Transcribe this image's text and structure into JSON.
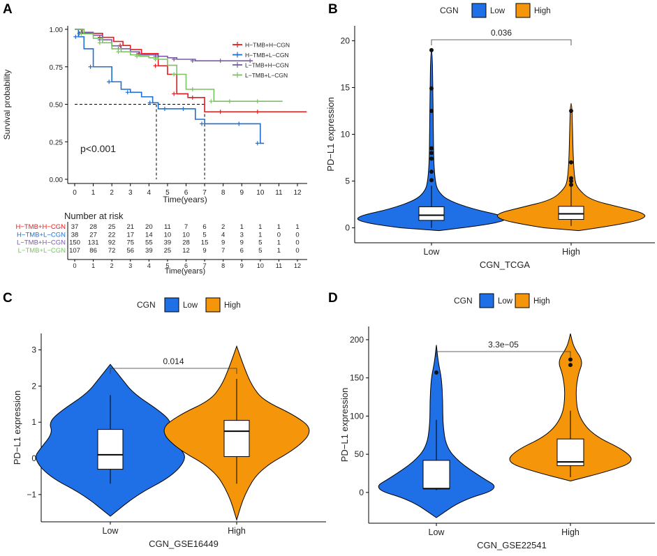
{
  "panels": {
    "A": {
      "label": "A",
      "chart_data": {
        "type": "line",
        "subtype": "kaplan-meier",
        "xlabel": "Time(years)",
        "ylabel": "Survival probability",
        "xlim": [
          0,
          12
        ],
        "ylim": [
          0,
          1
        ],
        "xticks": [
          "0",
          "1",
          "2",
          "3",
          "4",
          "5",
          "6",
          "7",
          "8",
          "9",
          "10",
          "11",
          "12"
        ],
        "yticks": [
          "0.00",
          "0.25",
          "0.50",
          "0.75",
          "1.00"
        ],
        "pvalue_text": "p<0.001",
        "median_lines": [
          4.4,
          7.0
        ],
        "series": [
          {
            "name": "H−TMB+H−CGN",
            "color": "#e41a1c",
            "x": [
              0,
              0.4,
              0.8,
              1.5,
              2.1,
              2.6,
              3.0,
              3.6,
              4.2,
              4.5,
              5.0,
              5.5,
              6.1,
              6.5,
              7.0,
              8.0,
              9.0,
              10.0,
              12.5
            ],
            "y": [
              1.0,
              0.973,
              0.973,
              0.946,
              0.919,
              0.892,
              0.865,
              0.838,
              0.838,
              0.757,
              0.7,
              0.57,
              0.545,
              0.545,
              0.45,
              0.45,
              0.45,
              0.45,
              0.45
            ]
          },
          {
            "name": "H−TMB+L−CGN",
            "color": "#1f6fd1",
            "x": [
              0,
              0.2,
              0.5,
              1.0,
              1.5,
              2.0,
              2.5,
              3.0,
              3.6,
              4.2,
              4.5,
              5.0,
              5.5,
              6.0,
              6.5,
              7.0,
              8.0,
              9.0,
              9.6,
              10.0,
              10.2
            ],
            "y": [
              1.0,
              0.95,
              0.87,
              0.75,
              0.75,
              0.65,
              0.6,
              0.58,
              0.55,
              0.51,
              0.47,
              0.47,
              0.47,
              0.47,
              0.4,
              0.37,
              0.37,
              0.37,
              0.37,
              0.24,
              0.24
            ]
          },
          {
            "name": "L−TMB+H−CGN",
            "color": "#7a5aa6",
            "x": [
              0,
              0.5,
              1.0,
              1.5,
              2.0,
              2.5,
              3.0,
              3.5,
              4.0,
              4.5,
              5.0,
              5.5,
              6.0,
              6.5,
              7.0,
              8.0,
              9.0,
              9.6
            ],
            "y": [
              1.0,
              0.98,
              0.96,
              0.93,
              0.89,
              0.87,
              0.85,
              0.83,
              0.83,
              0.82,
              0.81,
              0.8,
              0.8,
              0.79,
              0.79,
              0.79,
              0.79,
              0.79
            ]
          },
          {
            "name": "L−TMB+L−CGN",
            "color": "#79c360",
            "x": [
              0,
              0.5,
              1.0,
              1.5,
              2.0,
              2.5,
              3.0,
              3.5,
              4.0,
              4.5,
              5.0,
              5.5,
              6.0,
              6.5,
              7.0,
              7.5,
              8.0,
              8.5,
              9.0,
              10.0,
              11.2
            ],
            "y": [
              1.0,
              0.97,
              0.94,
              0.91,
              0.87,
              0.85,
              0.83,
              0.82,
              0.81,
              0.8,
              0.76,
              0.7,
              0.6,
              0.6,
              0.6,
              0.52,
              0.52,
              0.52,
              0.52,
              0.52,
              0.52
            ]
          }
        ]
      },
      "risk_table": {
        "title": "Number at risk",
        "xlabel": "Time(years)",
        "times": [
          "0",
          "1",
          "2",
          "3",
          "4",
          "5",
          "6",
          "7",
          "8",
          "9",
          "10",
          "11",
          "12"
        ],
        "rows": [
          {
            "name": "H−TMB+H−CGN",
            "color": "#e41a1c",
            "values": [
              "37",
              "28",
              "25",
              "21",
              "20",
              "11",
              "7",
              "6",
              "2",
              "1",
              "1",
              "1",
              "1"
            ]
          },
          {
            "name": "H−TMB+L−CGN",
            "color": "#1f6fd1",
            "values": [
              "38",
              "27",
              "22",
              "17",
              "14",
              "10",
              "10",
              "5",
              "4",
              "3",
              "1",
              "0",
              "0"
            ]
          },
          {
            "name": "L−TMB+H−CGN",
            "color": "#7a5aa6",
            "values": [
              "150",
              "131",
              "92",
              "75",
              "55",
              "39",
              "28",
              "15",
              "9",
              "9",
              "5",
              "1",
              "0"
            ]
          },
          {
            "name": "L−TMB+L−CGN",
            "color": "#79c360",
            "values": [
              "107",
              "86",
              "72",
              "56",
              "39",
              "25",
              "12",
              "9",
              "7",
              "6",
              "5",
              "1",
              "0"
            ]
          }
        ]
      }
    },
    "B": {
      "label": "B",
      "chart_data": {
        "type": "violin",
        "legend_title": "CGN",
        "legend": [
          {
            "name": "Low",
            "color": "#1f6fe6"
          },
          {
            "name": "High",
            "color": "#f5960a"
          }
        ],
        "xlabel": "CGN_TCGA",
        "ylabel": "PD−L1 expression",
        "ylim": [
          -1,
          21
        ],
        "yticks": [
          0,
          5,
          10,
          15,
          20
        ],
        "categories": [
          "Low",
          "High"
        ],
        "pvalue": "0.036",
        "groups": [
          {
            "name": "Low",
            "min": -0.3,
            "q1": 0.8,
            "median": 1.35,
            "q3": 2.25,
            "whisker_low": 0.0,
            "whisker_high": 4.5,
            "max": 19.0,
            "outliers": [
              19.0,
              14.9,
              12.5,
              8.5,
              8.0,
              7.4,
              6.0,
              5.1
            ],
            "density": [
              [
                -0.3,
                0.1
              ],
              [
                0.3,
                0.7
              ],
              [
                0.8,
                1
              ],
              [
                1.3,
                0.95
              ],
              [
                2.0,
                0.55
              ],
              [
                3.0,
                0.2
              ],
              [
                4.0,
                0.08
              ],
              [
                5.0,
                0.05
              ],
              [
                7.0,
                0.03
              ],
              [
                10.0,
                0.025
              ],
              [
                14.0,
                0.02
              ],
              [
                19.0,
                0.01
              ]
            ]
          },
          {
            "name": "High",
            "min": -0.3,
            "q1": 0.9,
            "median": 1.5,
            "q3": 2.3,
            "whisker_low": 0.2,
            "whisker_high": 4.4,
            "max": 13.3,
            "outliers": [
              12.5,
              7.0,
              5.3,
              5.0,
              4.6
            ],
            "density": [
              [
                -0.3,
                0.1
              ],
              [
                0.3,
                0.6
              ],
              [
                0.9,
                0.95
              ],
              [
                1.5,
                1
              ],
              [
                2.2,
                0.65
              ],
              [
                3.0,
                0.25
              ],
              [
                4.2,
                0.09
              ],
              [
                5.0,
                0.05
              ],
              [
                7.0,
                0.03
              ],
              [
                10.0,
                0.02
              ],
              [
                13.3,
                0.01
              ]
            ]
          }
        ]
      }
    },
    "C": {
      "label": "C",
      "chart_data": {
        "type": "violin",
        "legend_title": "CGN",
        "legend": [
          {
            "name": "Low",
            "color": "#1f6fe6"
          },
          {
            "name": "High",
            "color": "#f5960a"
          }
        ],
        "xlabel": "CGN_GSE16449",
        "ylabel": "PD−L1 expression",
        "ylim": [
          -1.6,
          3.3
        ],
        "yticks": [
          -1,
          0,
          1,
          2,
          3
        ],
        "categories": [
          "Low",
          "High"
        ],
        "pvalue": "0.014",
        "groups": [
          {
            "name": "Low",
            "q1": -0.3,
            "median": 0.1,
            "q3": 0.8,
            "whisker_low": -0.7,
            "whisker_high": 1.75,
            "outliers": [],
            "density": [
              [
                -1.6,
                0.0
              ],
              [
                -1.0,
                0.35
              ],
              [
                -0.5,
                0.8
              ],
              [
                0.0,
                1
              ],
              [
                0.3,
                0.9
              ],
              [
                0.7,
                0.75
              ],
              [
                1.0,
                0.8
              ],
              [
                1.3,
                0.65
              ],
              [
                1.8,
                0.3
              ],
              [
                2.2,
                0.15
              ],
              [
                2.6,
                0.0
              ]
            ]
          },
          {
            "name": "High",
            "q1": 0.05,
            "median": 0.75,
            "q3": 1.05,
            "whisker_low": -0.7,
            "whisker_high": 2.2,
            "outliers": [],
            "density": [
              [
                -1.7,
                0.0
              ],
              [
                -1.0,
                0.1
              ],
              [
                -0.3,
                0.3
              ],
              [
                0.3,
                0.8
              ],
              [
                0.8,
                1
              ],
              [
                1.2,
                0.75
              ],
              [
                1.6,
                0.35
              ],
              [
                2.0,
                0.2
              ],
              [
                2.5,
                0.1
              ],
              [
                3.1,
                0.0
              ]
            ]
          }
        ]
      }
    },
    "D": {
      "label": "D",
      "chart_data": {
        "type": "violin",
        "legend_title": "CGN",
        "legend": [
          {
            "name": "Low",
            "color": "#1f6fe6"
          },
          {
            "name": "High",
            "color": "#f5960a"
          }
        ],
        "xlabel": "CGN_GSE22541",
        "ylabel": "PD−L1 expression",
        "ylim": [
          -33,
          210
        ],
        "yticks": [
          0,
          50,
          100,
          150,
          200
        ],
        "categories": [
          "Low",
          "High"
        ],
        "pvalue": "3.3e−05",
        "groups": [
          {
            "name": "Low",
            "q1": 5,
            "median": 5,
            "q3": 42,
            "whisker_low": 3,
            "whisker_high": 95,
            "outliers": [
              157
            ],
            "density": [
              [
                -33,
                0.0
              ],
              [
                -10,
                0.4
              ],
              [
                5,
                1
              ],
              [
                20,
                0.7
              ],
              [
                40,
                0.35
              ],
              [
                60,
                0.15
              ],
              [
                90,
                0.1
              ],
              [
                120,
                0.1
              ],
              [
                150,
                0.08
              ],
              [
                170,
                0.03
              ],
              [
                193,
                0.0
              ]
            ]
          },
          {
            "name": "High",
            "q1": 35,
            "median": 40,
            "q3": 70,
            "whisker_low": 20,
            "whisker_high": 107,
            "outliers": [
              174,
              167
            ],
            "density": [
              [
                15,
                0.0
              ],
              [
                28,
                0.6
              ],
              [
                40,
                1
              ],
              [
                55,
                0.85
              ],
              [
                75,
                0.35
              ],
              [
                100,
                0.12
              ],
              [
                130,
                0.08
              ],
              [
                155,
                0.12
              ],
              [
                172,
                0.2
              ],
              [
                190,
                0.05
              ],
              [
                208,
                0.0
              ]
            ]
          }
        ]
      }
    }
  }
}
